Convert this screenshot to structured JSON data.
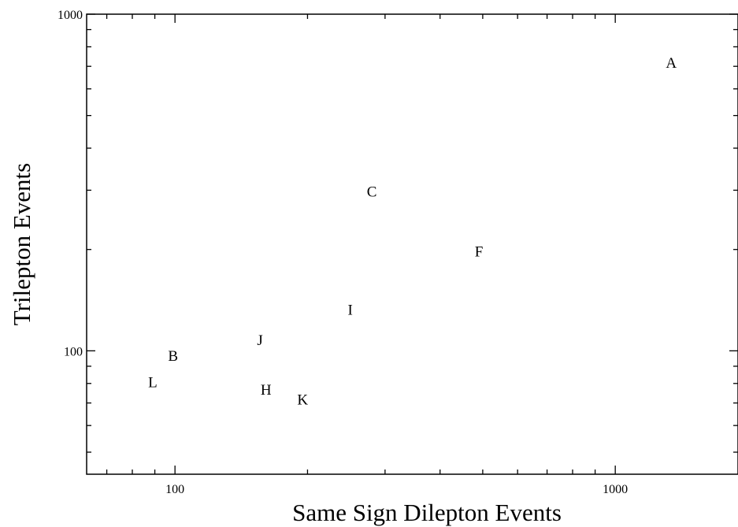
{
  "chart_data": {
    "type": "scatter",
    "title": "",
    "xlabel": "Same Sign Dilepton Events",
    "ylabel": "Trilepton Events",
    "xscale": "log",
    "yscale": "log",
    "xlim": [
      63,
      1900
    ],
    "ylim": [
      43,
      1000
    ],
    "xticks": [
      {
        "value": 100,
        "label": "100"
      },
      {
        "value": 1000,
        "label": "1000"
      }
    ],
    "yticks": [
      {
        "value": 100,
        "label": "100"
      },
      {
        "value": 1000,
        "label": "1000"
      }
    ],
    "grid": false,
    "marker": "letter",
    "points": [
      {
        "label": "A",
        "x": 1340,
        "y": 720
      },
      {
        "label": "B",
        "x": 99,
        "y": 97
      },
      {
        "label": "C",
        "x": 280,
        "y": 298
      },
      {
        "label": "F",
        "x": 490,
        "y": 198
      },
      {
        "label": "H",
        "x": 161,
        "y": 77
      },
      {
        "label": "I",
        "x": 250,
        "y": 133
      },
      {
        "label": "J",
        "x": 156,
        "y": 108
      },
      {
        "label": "K",
        "x": 195,
        "y": 72
      },
      {
        "label": "L",
        "x": 89,
        "y": 81
      }
    ]
  }
}
